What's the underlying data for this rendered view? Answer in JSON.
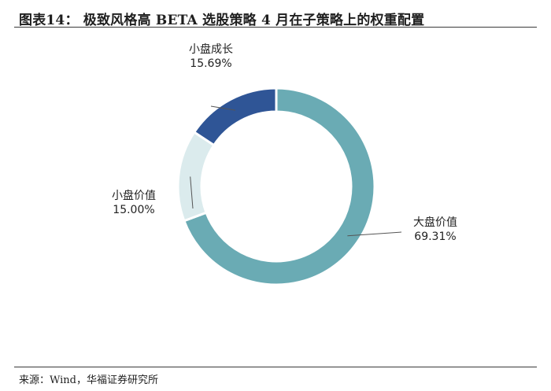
{
  "title": "图表14： 极致风格高 BETA 选股策略 4 月在子策略上的权重配置",
  "source": "来源：Wind，华福证券研究所",
  "chart_data": {
    "type": "pie",
    "donut": true,
    "title": "图表14： 极致风格高 BETA 选股策略 4 月在子策略上的权重配置",
    "slices": [
      {
        "name": "大盘价值",
        "value": 69.31,
        "label": "69.31%",
        "color": "#6aabb4"
      },
      {
        "name": "小盘价值",
        "value": 15.0,
        "label": "15.00%",
        "color": "#dbebed"
      },
      {
        "name": "小盘成长",
        "value": 15.69,
        "label": "15.69%",
        "color": "#2f5596"
      }
    ]
  }
}
